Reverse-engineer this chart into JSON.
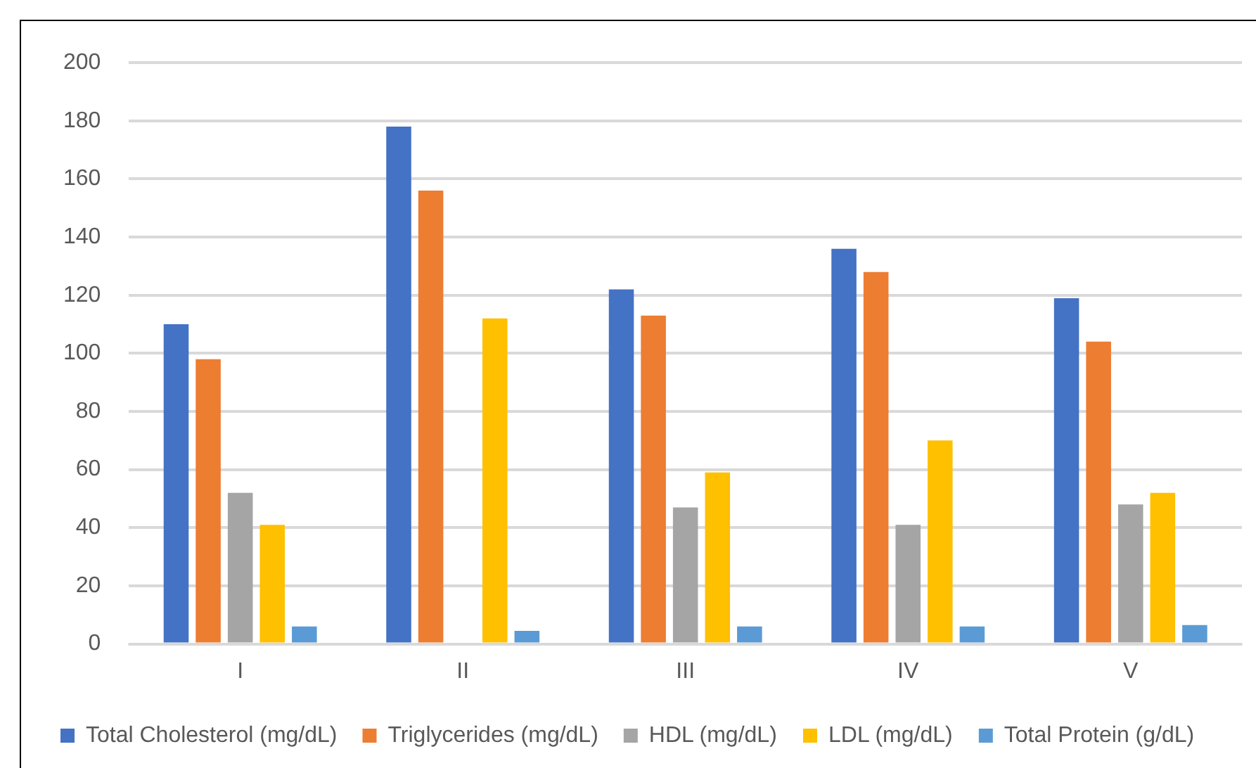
{
  "chart_data": {
    "type": "bar",
    "categories": [
      "I",
      "II",
      "III",
      "IV",
      "V"
    ],
    "series": [
      {
        "name": "Total Cholesterol (mg/dL)",
        "color": "#4472c4",
        "values": [
          110,
          178,
          122,
          136,
          119
        ]
      },
      {
        "name": "Triglycerides (mg/dL)",
        "color": "#ed7d31",
        "values": [
          98,
          156,
          113,
          128,
          104
        ]
      },
      {
        "name": "HDL (mg/dL)",
        "color": "#a5a5a5",
        "values": [
          52,
          null,
          47,
          41,
          48
        ]
      },
      {
        "name": "LDL (mg/dL)",
        "color": "#ffc000",
        "values": [
          41,
          112,
          59,
          70,
          52
        ]
      },
      {
        "name": "Total Protein (g/dL)",
        "color": "#5b9bd5",
        "values": [
          6,
          4.5,
          6,
          6,
          6.5
        ]
      }
    ],
    "ylim": [
      0,
      200
    ],
    "yticks": [
      0,
      20,
      40,
      60,
      80,
      100,
      120,
      140,
      160,
      180,
      200
    ],
    "grid": "y",
    "legend": "bottom"
  }
}
